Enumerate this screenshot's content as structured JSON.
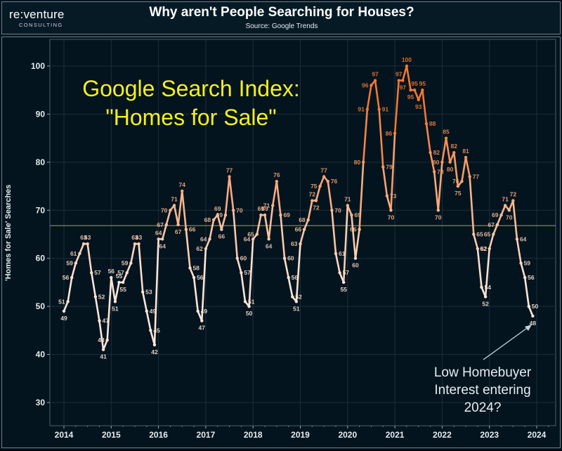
{
  "header": {
    "logo_main": "re:venture",
    "logo_sub": "CONSULTING",
    "title": "Why aren't People Searching for Houses?",
    "subtitle": "Source: Google Trends"
  },
  "chart_annotations": {
    "headline_line1": "Google Search Index:",
    "headline_line2": "\"Homes for Sale\"",
    "callout_line1": "Low Homebuyer",
    "callout_line2": "Interest entering",
    "callout_line3": "2024?",
    "ylabel": "'Homes for Sale' Searches"
  },
  "colors": {
    "background": "#03141f",
    "grid": "#1b2e38",
    "reference_line": "#8d9a3a",
    "line_low": "#fde6d8",
    "line_high": "#f2782f",
    "headline": "#f4f01e",
    "axis_text": "#e6ecef"
  },
  "chart_data": {
    "type": "line",
    "title": "Why aren't People Searching for Houses?",
    "subtitle": "Source: Google Trends",
    "xlabel": "",
    "ylabel": "'Homes for Sale' Searches",
    "ylim": [
      25,
      105
    ],
    "yticks": [
      30,
      40,
      50,
      60,
      70,
      80,
      90,
      100
    ],
    "xticks": [
      "2014",
      "2015",
      "2016",
      "2017",
      "2018",
      "2019",
      "2020",
      "2021",
      "2022",
      "2023",
      "2024"
    ],
    "grid": true,
    "reference_line": 66.8,
    "x_start": "2014-01",
    "x_frequency": "monthly",
    "series": [
      {
        "name": "Google Search Index: \"Homes for Sale\"",
        "values": [
          49,
          51,
          56,
          59,
          61,
          63,
          63,
          57,
          52,
          47,
          41,
          43,
          56,
          51,
          55,
          55,
          57,
          59,
          63,
          63,
          53,
          49,
          45,
          42,
          64,
          64,
          67,
          70,
          71,
          67,
          74,
          66,
          58,
          56,
          49,
          47,
          62,
          64,
          68,
          69,
          66,
          69,
          77,
          70,
          60,
          57,
          51,
          50,
          64,
          65,
          69,
          69,
          64,
          71,
          76,
          69,
          60,
          56,
          52,
          51,
          63,
          66,
          68,
          72,
          72,
          75,
          77,
          76,
          70,
          61,
          57,
          55,
          71,
          69,
          60,
          66,
          80,
          91,
          96,
          97,
          91,
          79,
          73,
          70,
          86,
          97,
          97,
          100,
          95,
          95,
          93,
          95,
          88,
          82,
          78,
          70,
          80,
          85,
          80,
          82,
          75,
          76,
          81,
          77,
          65,
          62,
          54,
          52,
          62,
          65,
          67,
          69,
          71,
          70,
          72,
          64,
          59,
          56,
          50,
          48
        ]
      }
    ],
    "annotations": [
      "Google Search Index: \"Homes for Sale\"",
      "Low Homebuyer Interest entering 2024?"
    ]
  }
}
